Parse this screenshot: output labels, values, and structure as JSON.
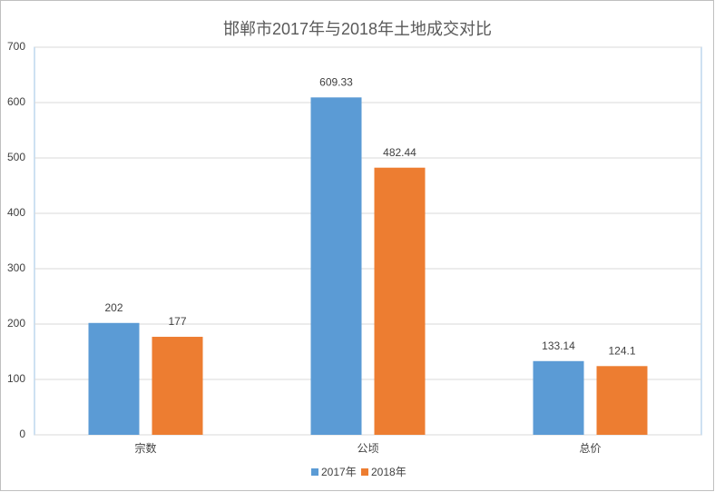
{
  "chart_data": {
    "type": "bar",
    "title": "邯郸市2017年与2018年土地成交对比",
    "categories": [
      "宗数",
      "公顷",
      "总价"
    ],
    "series": [
      {
        "name": "2017年",
        "color": "#5b9bd5",
        "values": [
          202,
          609.33,
          133.14
        ]
      },
      {
        "name": "2018年",
        "color": "#ed7d31",
        "values": [
          177,
          482.44,
          124.1
        ]
      }
    ],
    "ylim": [
      0,
      700
    ],
    "yticks": [
      0,
      100,
      200,
      300,
      400,
      500,
      600,
      700
    ],
    "grid": true,
    "legend": "bottom"
  }
}
